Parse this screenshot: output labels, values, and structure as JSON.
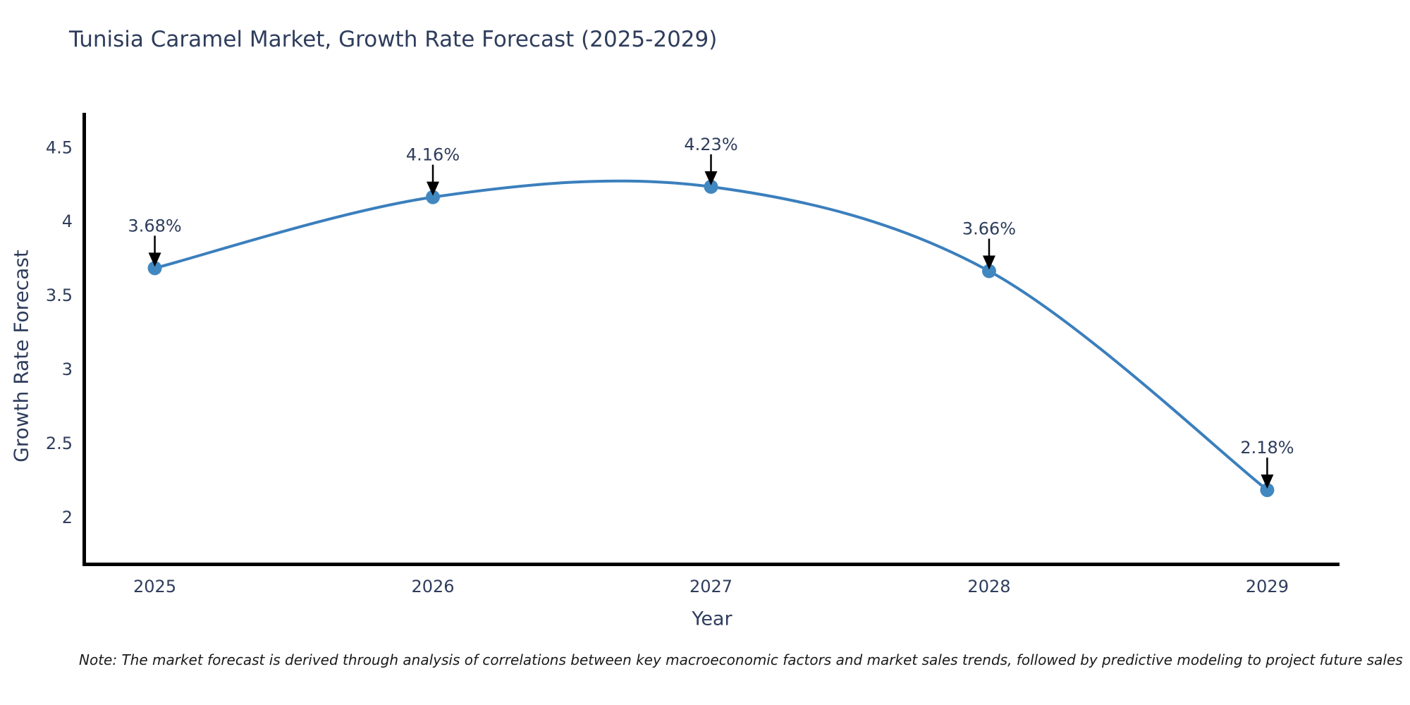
{
  "note": "Note: The market forecast is derived through analysis of correlations between key macroeconomic factors and market sales trends, followed by predictive modeling to project future sales",
  "chart_data": {
    "type": "line",
    "title": "Tunisia Caramel Market, Growth Rate Forecast (2025-2029)",
    "xlabel": "Year",
    "ylabel": "Growth Rate Forecast",
    "x": [
      2025,
      2026,
      2027,
      2028,
      2029
    ],
    "values": [
      3.68,
      4.16,
      4.23,
      3.66,
      2.18
    ],
    "point_labels": [
      "3.68%",
      "4.16%",
      "4.23%",
      "3.66%",
      "2.18%"
    ],
    "xticks": [
      "2025",
      "2026",
      "2027",
      "2028",
      "2029"
    ],
    "yticks": [
      4.5,
      4,
      3.5,
      3,
      2.5,
      2
    ],
    "xlim": [
      2024.74,
      2029.26
    ],
    "ylim": [
      1.68,
      4.73
    ],
    "grid": false,
    "legend": "none",
    "line_color": "#3b7fbd",
    "marker_color": "#4288c0",
    "text_color": "#2f3d5c",
    "arrow_color": "#000000",
    "axis_color": "#000000"
  }
}
